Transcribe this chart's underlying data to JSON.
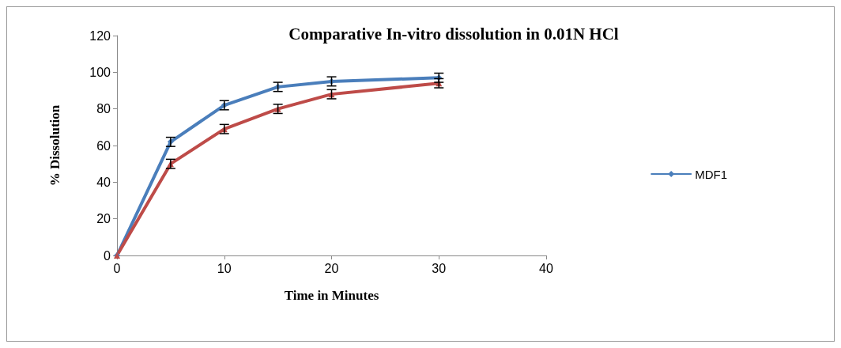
{
  "chart_data": {
    "type": "line",
    "title": "Comparative In-vitro dissolution in 0.01N HCl",
    "xlabel": "Time in Minutes",
    "ylabel": "% Dissolution",
    "x": [
      0,
      5,
      10,
      15,
      20,
      30
    ],
    "series": [
      {
        "name": "MDF1",
        "color": "#4a7ebb",
        "marker": "diamond",
        "values": [
          0,
          62,
          82,
          92,
          95,
          97
        ],
        "errors": [
          null,
          2.5,
          2.5,
          2.5,
          2.5,
          2.5
        ]
      },
      {
        "color": "#be4b48",
        "marker": "triangle",
        "values": [
          0,
          50,
          69,
          80,
          88,
          94
        ],
        "errors": [
          null,
          2.5,
          2.5,
          2.5,
          2.5,
          2.5
        ]
      }
    ],
    "xlim": [
      0,
      40
    ],
    "xticks": [
      0,
      10,
      20,
      30,
      40
    ],
    "ylim": [
      0,
      120
    ],
    "yticks": [
      0,
      20,
      40,
      60,
      80,
      100,
      120
    ],
    "grid": false,
    "legend": "right",
    "line_style": "solid"
  }
}
